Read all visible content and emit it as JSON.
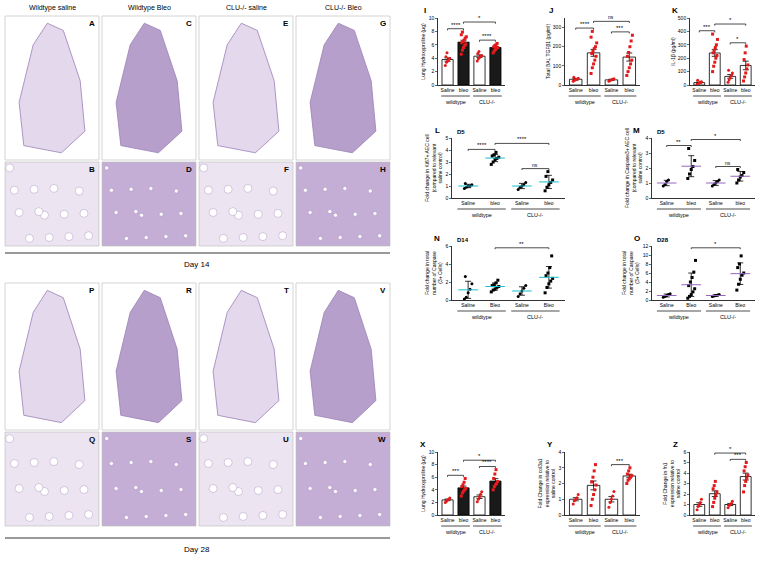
{
  "image_panels": {
    "columns": [
      "Wildtype saline",
      "Wildtype Bleo",
      "CLU-/- saline",
      "CLU-/- Bleo"
    ],
    "blocks": [
      {
        "label": "Day 14",
        "rows": [
          [
            "A",
            "C",
            "E",
            "G"
          ],
          [
            "B",
            "D",
            "F",
            "H"
          ]
        ]
      },
      {
        "label": "Day 28",
        "rows": [
          [
            "P",
            "R",
            "T",
            "V"
          ],
          [
            "Q",
            "S",
            "U",
            "W"
          ]
        ]
      }
    ]
  },
  "chart_data": [
    {
      "panel": "I",
      "type": "bar",
      "ylabel": [
        "Lung Hydroxyproline (µg)"
      ],
      "categories": [
        "Saline",
        "bleo",
        "Saline",
        "bleo"
      ],
      "groups": [
        {
          "label": "wildtype",
          "members": [
            0,
            1
          ]
        },
        {
          "label": "CLU-/-",
          "members": [
            2,
            3
          ]
        }
      ],
      "values": [
        3.8,
        6.4,
        4.3,
        5.6
      ],
      "errors": [
        0.25,
        0.28,
        0.2,
        0.15
      ],
      "points": [
        [
          2.9,
          3.4,
          3.6,
          3.8,
          4.0,
          4.2,
          4.8
        ],
        [
          4.6,
          5.2,
          5.6,
          5.9,
          6.1,
          6.3,
          6.5,
          6.7,
          7.0,
          7.2,
          7.5,
          7.9
        ],
        [
          3.6,
          3.9,
          4.1,
          4.3,
          4.4,
          4.7,
          5.0
        ],
        [
          4.8,
          5.1,
          5.3,
          5.5,
          5.6,
          5.7,
          5.9,
          6.0,
          6.2
        ]
      ],
      "colors": [
        "#ffffff",
        "#1a1a1a",
        "#ffffff",
        "#1a1a1a"
      ],
      "ylim": [
        0,
        10
      ],
      "yticks": [
        0,
        2,
        4,
        6,
        8,
        10
      ],
      "significance": [
        {
          "between": [
            0,
            1
          ],
          "text": "****"
        },
        {
          "between": [
            1,
            3
          ],
          "text": "*"
        },
        {
          "between": [
            2,
            3
          ],
          "text": "****"
        }
      ]
    },
    {
      "panel": "J",
      "type": "bar",
      "ylabel": [
        "Total BAL TGFβ1 (pg/ml)"
      ],
      "categories": [
        "Saline",
        "bleo",
        "Saline",
        "bleo"
      ],
      "groups": [
        {
          "label": "wildtype",
          "members": [
            0,
            1
          ]
        },
        {
          "label": "CLU-/-",
          "members": [
            2,
            3
          ]
        }
      ],
      "values": [
        30,
        168,
        27,
        146
      ],
      "errors": [
        4,
        18,
        3,
        21
      ],
      "points": [
        [
          20,
          25,
          28,
          30,
          35,
          40
        ],
        [
          60,
          90,
          110,
          130,
          150,
          165,
          175,
          190,
          200,
          220,
          250,
          280
        ],
        [
          20,
          24,
          27,
          30,
          33
        ],
        [
          50,
          70,
          90,
          110,
          130,
          150,
          170,
          200,
          230,
          260
        ]
      ],
      "colors": [
        "#ffffff",
        "#ffffff",
        "#ffffff",
        "#ffffff"
      ],
      "ylim": [
        0,
        350
      ],
      "yticks": [
        0,
        100,
        200,
        300
      ],
      "significance": [
        {
          "between": [
            0,
            1
          ],
          "text": "****"
        },
        {
          "between": [
            1,
            3
          ],
          "text": "ns"
        },
        {
          "between": [
            2,
            3
          ],
          "text": "***"
        }
      ]
    },
    {
      "panel": "K",
      "type": "bar",
      "ylabel": [
        "IL-1β (pg/ml)"
      ],
      "categories": [
        "Saline",
        "bleo",
        "Saline",
        "bleo"
      ],
      "groups": [
        {
          "label": "wildtype",
          "members": [
            0,
            1
          ]
        },
        {
          "label": "CLU-/-",
          "members": [
            2,
            3
          ]
        }
      ],
      "values": [
        18,
        239,
        64,
        146
      ],
      "errors": [
        4,
        25,
        14,
        32
      ],
      "points": [
        [
          5,
          10,
          15,
          20,
          25,
          35
        ],
        [
          100,
          140,
          170,
          200,
          220,
          240,
          260,
          280,
          300,
          340,
          380
        ],
        [
          20,
          40,
          55,
          70,
          90,
          110
        ],
        [
          30,
          60,
          90,
          120,
          150,
          190,
          240,
          290
        ]
      ],
      "colors": [
        "#ffffff",
        "#ffffff",
        "#ffffff",
        "#ffffff"
      ],
      "ylim": [
        0,
        500
      ],
      "yticks": [
        0,
        100,
        200,
        300,
        400,
        500
      ],
      "significance": [
        {
          "between": [
            0,
            1
          ],
          "text": "***"
        },
        {
          "between": [
            1,
            3
          ],
          "text": "*"
        },
        {
          "between": [
            2,
            3
          ],
          "text": "*"
        }
      ]
    },
    {
      "panel": "L",
      "title": "D5",
      "type": "scatter",
      "ylabel": [
        "Fold change in Ki67+ AEC cell",
        "(compared to relevant",
        "saline control)"
      ],
      "categories": [
        "Saline",
        "bleo",
        "Saline",
        "bleo"
      ],
      "groups": [
        {
          "label": "wildtype",
          "members": [
            0,
            1
          ]
        },
        {
          "label": "CLU-/-",
          "members": [
            2,
            3
          ]
        }
      ],
      "values": [
        1.0,
        3.33,
        1.0,
        1.34
      ],
      "errors": [
        0.14,
        0.3,
        0.22,
        0.55
      ],
      "points": [
        [
          0.8,
          0.9,
          1.0,
          1.0,
          1.1,
          1.2
        ],
        [
          2.8,
          3.0,
          3.2,
          3.3,
          3.4,
          3.5,
          3.6,
          3.8
        ],
        [
          0.7,
          0.9,
          1.0,
          1.1,
          1.3
        ],
        [
          0.6,
          0.9,
          1.1,
          1.3,
          1.5,
          1.8,
          2.2
        ]
      ],
      "ylim": [
        0,
        5
      ],
      "yticks": [
        0,
        1,
        2,
        3,
        4,
        5
      ],
      "significance": [
        {
          "between": [
            0,
            1
          ],
          "text": "****"
        },
        {
          "between": [
            1,
            3
          ],
          "text": "****"
        },
        {
          "between": [
            2,
            3
          ],
          "text": "ns"
        }
      ]
    },
    {
      "panel": "M",
      "title": "D5",
      "type": "scatter",
      "ylabel": [
        "Fold change in Caspase3+ AEC cell",
        "(compared to relevant",
        "saline control)"
      ],
      "categories": [
        "Saline",
        "bleo",
        "Saline",
        "bleo"
      ],
      "groups": [
        {
          "label": "wildtype",
          "members": [
            0,
            1
          ]
        },
        {
          "label": "CLU-/-",
          "members": [
            2,
            3
          ]
        }
      ],
      "values": [
        1.0,
        2.12,
        1.0,
        1.45
      ],
      "errors": [
        0.18,
        0.7,
        0.16,
        0.32
      ],
      "points": [
        [
          0.8,
          0.9,
          1.1,
          1.2
        ],
        [
          1.3,
          1.6,
          1.9,
          2.1,
          2.5,
          3.3
        ],
        [
          0.8,
          0.9,
          1.0,
          1.1,
          1.2
        ],
        [
          1.0,
          1.2,
          1.4,
          1.5,
          1.7,
          1.9
        ]
      ],
      "ylim": [
        0,
        4
      ],
      "yticks": [
        0,
        1,
        2,
        3,
        4
      ],
      "significance": [
        {
          "between": [
            0,
            1
          ],
          "text": "**"
        },
        {
          "between": [
            1,
            3
          ],
          "text": "*"
        },
        {
          "between": [
            2,
            3
          ],
          "text": "ns"
        }
      ]
    },
    {
      "panel": "N",
      "title": "D14",
      "type": "scatter",
      "ylabel": [
        "Fold change in total",
        "number of Caspase",
        "(3+ Cells)"
      ],
      "categories": [
        "Saline",
        "Bleo",
        "Saline",
        "Bleo"
      ],
      "groups": [
        {
          "label": "wildtype",
          "members": [
            0,
            1
          ]
        },
        {
          "label": "CLU-/-",
          "members": [
            2,
            3
          ]
        }
      ],
      "values": [
        1.13,
        1.5,
        1.0,
        2.52
      ],
      "errors": [
        0.95,
        0.4,
        0.47,
        1.2
      ],
      "points": [
        [
          0.1,
          0.3,
          0.8,
          1.2,
          1.8,
          2.6
        ],
        [
          0.9,
          1.1,
          1.2,
          1.4,
          1.5,
          1.6,
          1.7,
          1.9,
          2.2
        ],
        [
          0.4,
          0.7,
          1.0,
          1.3,
          1.6
        ],
        [
          0.8,
          1.4,
          1.8,
          2.1,
          2.4,
          2.7,
          3.0,
          3.6,
          4.9
        ]
      ],
      "ylim": [
        0,
        6
      ],
      "yticks": [
        0,
        2,
        4,
        6
      ],
      "significance": [
        {
          "between": [
            1,
            3
          ],
          "text": "**"
        }
      ]
    },
    {
      "panel": "O",
      "title": "D28",
      "type": "scatter",
      "ylabel": [
        "Fold change in total",
        "number of Caspase",
        "(3+ Cells)"
      ],
      "categories": [
        "Saline",
        "Bleo",
        "Saline",
        "Bleo"
      ],
      "groups": [
        {
          "label": "wildtype",
          "members": [
            0,
            1
          ]
        },
        {
          "label": "CLU-/-",
          "members": [
            2,
            3
          ]
        }
      ],
      "values": [
        1.0,
        3.39,
        1.0,
        5.85
      ],
      "errors": [
        0.32,
        2.6,
        0.16,
        2.4
      ],
      "points": [
        [
          0.6,
          0.8,
          1.0,
          1.2,
          1.4
        ],
        [
          0.4,
          0.8,
          1.2,
          1.8,
          2.5,
          3.2,
          4.0,
          5.0,
          6.2,
          8.8
        ],
        [
          0.8,
          0.9,
          1.0,
          1.1,
          1.2
        ],
        [
          2.2,
          3.5,
          4.6,
          5.5,
          6.0,
          7.2,
          8.0,
          9.8
        ]
      ],
      "ylim": [
        0,
        12
      ],
      "yticks": [
        0,
        2,
        4,
        6,
        8,
        10,
        12
      ],
      "significance": [
        {
          "between": [
            1,
            3
          ],
          "text": "*"
        }
      ]
    },
    {
      "panel": "X",
      "type": "bar",
      "ylabel": [
        "Lung Hydroxyproline (µg)"
      ],
      "categories": [
        "Saline",
        "bleo",
        "Saline",
        "bleo"
      ],
      "groups": [
        {
          "label": "wildtype",
          "members": [
            0,
            1
          ]
        },
        {
          "label": "CLU-/-",
          "members": [
            2,
            3
          ]
        }
      ],
      "values": [
        2.4,
        4.31,
        2.9,
        5.39
      ],
      "errors": [
        0.13,
        0.28,
        0.28,
        0.38
      ],
      "points": [
        [
          2.0,
          2.2,
          2.4,
          2.5,
          2.7
        ],
        [
          3.0,
          3.5,
          3.8,
          4.0,
          4.2,
          4.5,
          4.8,
          5.2,
          5.8
        ],
        [
          2.1,
          2.5,
          2.9,
          3.3,
          3.7
        ],
        [
          4.0,
          4.5,
          4.8,
          5.0,
          5.3,
          5.8,
          6.5,
          7.2
        ]
      ],
      "colors": [
        "#ffffff",
        "#1a1a1a",
        "#ffffff",
        "#1a1a1a"
      ],
      "ylim": [
        0,
        10
      ],
      "yticks": [
        0,
        2,
        4,
        6,
        8,
        10
      ],
      "significance": [
        {
          "between": [
            0,
            1
          ],
          "text": "***"
        },
        {
          "between": [
            1,
            3
          ],
          "text": "*"
        },
        {
          "between": [
            2,
            3
          ],
          "text": "****"
        }
      ]
    },
    {
      "panel": "Y",
      "type": "bar",
      "ylabel": [
        "Fold Change in col3a1",
        "expression relative to",
        "saline control"
      ],
      "categories": [
        "Saline",
        "bleo",
        "Saline",
        "bleo"
      ],
      "groups": [
        {
          "label": "wildtype",
          "members": [
            0,
            1
          ]
        },
        {
          "label": "CLU-/-",
          "members": [
            2,
            3
          ]
        }
      ],
      "values": [
        1.0,
        1.88,
        1.0,
        2.48
      ],
      "errors": [
        0.1,
        0.28,
        0.17,
        0.11
      ],
      "points": [
        [
          0.7,
          0.9,
          1.0,
          1.1,
          1.3
        ],
        [
          0.6,
          1.0,
          1.3,
          1.6,
          1.9,
          2.1,
          2.4,
          2.8,
          3.2
        ],
        [
          0.5,
          0.8,
          1.0,
          1.2,
          1.5
        ],
        [
          2.0,
          2.2,
          2.3,
          2.4,
          2.5,
          2.6,
          2.8,
          3.0
        ]
      ],
      "colors": [
        "#ffffff",
        "#ffffff",
        "#ffffff",
        "#ffffff"
      ],
      "ylim": [
        0,
        4
      ],
      "yticks": [
        0,
        1,
        2,
        3,
        4
      ],
      "significance": [
        {
          "between": [
            2,
            3
          ],
          "text": "***"
        }
      ]
    },
    {
      "panel": "Z",
      "type": "bar",
      "ylabel": [
        "Fold Change in fn1",
        "expression relative to",
        "saline control"
      ],
      "categories": [
        "Saline",
        "bleo",
        "Saline",
        "bleo"
      ],
      "groups": [
        {
          "label": "wildtype",
          "members": [
            0,
            1
          ]
        },
        {
          "label": "CLU-/-",
          "members": [
            2,
            3
          ]
        }
      ],
      "values": [
        1.0,
        2.03,
        1.0,
        3.66
      ],
      "errors": [
        0.17,
        0.27,
        0.1,
        0.33
      ],
      "points": [
        [
          0.5,
          0.8,
          1.0,
          1.2,
          1.5
        ],
        [
          0.8,
          1.2,
          1.6,
          1.9,
          2.2,
          2.5,
          2.8,
          3.2
        ],
        [
          0.7,
          0.9,
          1.0,
          1.1,
          1.3
        ],
        [
          2.2,
          2.8,
          3.2,
          3.5,
          3.8,
          4.2,
          4.6,
          5.0
        ]
      ],
      "colors": [
        "#ffffff",
        "#ffffff",
        "#ffffff",
        "#ffffff"
      ],
      "ylim": [
        0,
        6
      ],
      "yticks": [
        0,
        1,
        2,
        3,
        4,
        5,
        6
      ],
      "significance": [
        {
          "between": [
            1,
            3
          ],
          "text": "*"
        },
        {
          "between": [
            2,
            3
          ],
          "text": "***"
        }
      ]
    }
  ]
}
